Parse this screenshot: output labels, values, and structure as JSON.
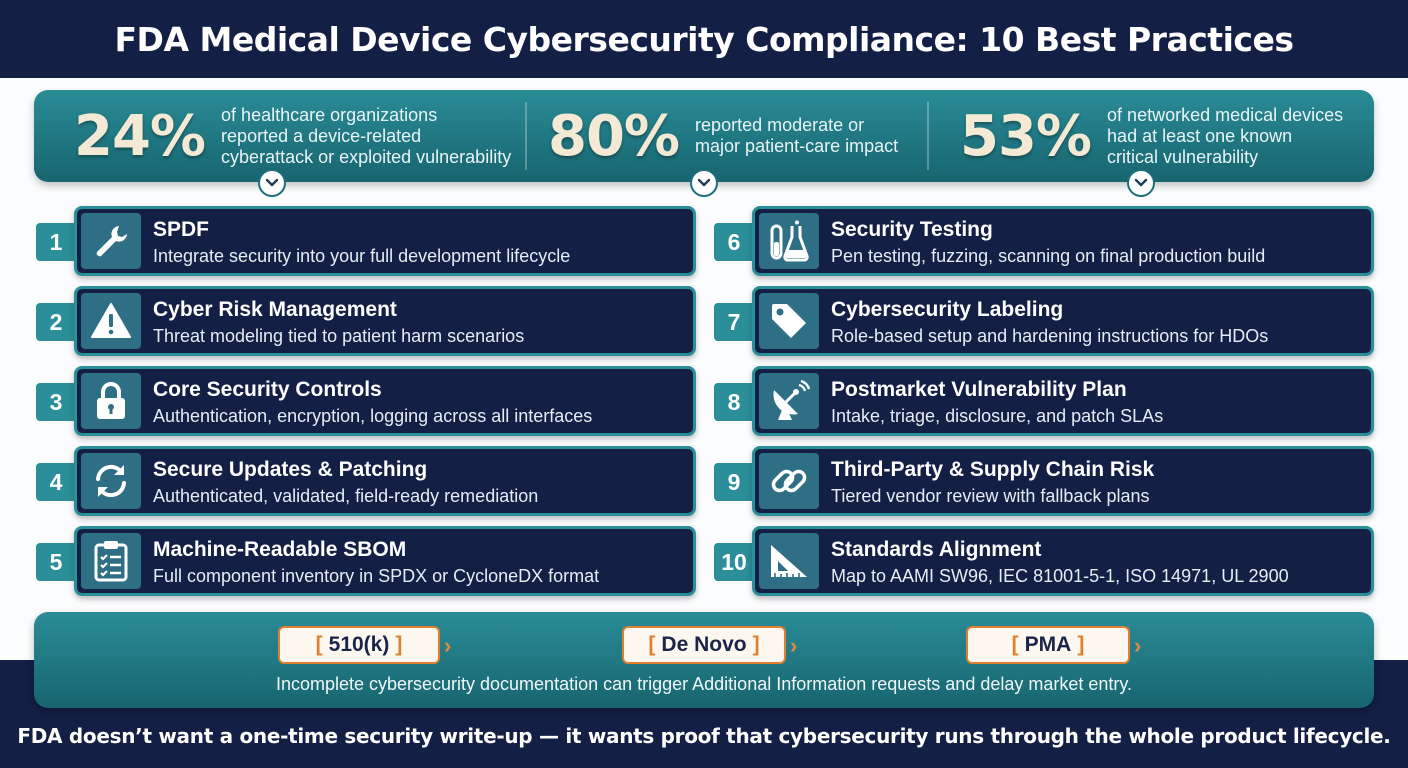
{
  "title": "FDA Medical Device Cybersecurity Compliance: 10 Best Practices",
  "stats": [
    {
      "value": "24%",
      "text": [
        "of healthcare organizations",
        "reported a device-related",
        "cyberattack or exploited vulnerability"
      ]
    },
    {
      "value": "80%",
      "text": [
        "reported moderate or",
        "major patient-care impact"
      ]
    },
    {
      "value": "53%",
      "text": [
        "of networked medical devices",
        "had at least one known",
        "critical vulnerability"
      ]
    }
  ],
  "practices": [
    {
      "number": "1",
      "title": "SPDF",
      "description": "Integrate security into your full development lifecycle",
      "icon": "wrench-icon"
    },
    {
      "number": "2",
      "title": "Cyber Risk Management",
      "description": "Threat modeling tied to patient harm scenarios",
      "icon": "warning-icon"
    },
    {
      "number": "3",
      "title": "Core Security Controls",
      "description": "Authentication, encryption, logging across all interfaces",
      "icon": "lock-icon"
    },
    {
      "number": "4",
      "title": "Secure Updates & Patching",
      "description": "Authenticated, validated, field-ready remediation",
      "icon": "refresh-icon"
    },
    {
      "number": "5",
      "title": "Machine-Readable SBOM",
      "description": "Full component inventory in SPDX or CycloneDX format",
      "icon": "clipboard-checklist-icon"
    },
    {
      "number": "6",
      "title": "Security Testing",
      "description": "Pen testing, fuzzing, scanning on final production build",
      "icon": "lab-flask-icon"
    },
    {
      "number": "7",
      "title": "Cybersecurity Labeling",
      "description": "Role-based setup and hardening instructions for HDOs",
      "icon": "tag-icon"
    },
    {
      "number": "8",
      "title": "Postmarket Vulnerability Plan",
      "description": "Intake, triage, disclosure, and patch SLAs",
      "icon": "satellite-dish-icon"
    },
    {
      "number": "9",
      "title": "Third-Party & Supply Chain Risk",
      "description": "Tiered vendor review with fallback plans",
      "icon": "chain-link-icon"
    },
    {
      "number": "10",
      "title": "Standards Alignment",
      "description": "Map to AAMI SW96, IEC 81001-5-1, ISO 14971, UL 2900",
      "icon": "set-square-icon"
    }
  ],
  "pathways": [
    "510(k)",
    "De Novo",
    "PMA"
  ],
  "pathway_note": "Incomplete cybersecurity documentation can trigger Additional Information requests and delay market entry.",
  "footer": "FDA doesn’t want a one-time security write-up — it wants proof that cybersecurity runs through the whole product lifecycle.",
  "colors": {
    "navy": "#141f45",
    "teal": "#2a8c97",
    "icon_bg": "#2e6f86",
    "orange": "#e07f2f",
    "stat_number": "#f3e9d4"
  }
}
